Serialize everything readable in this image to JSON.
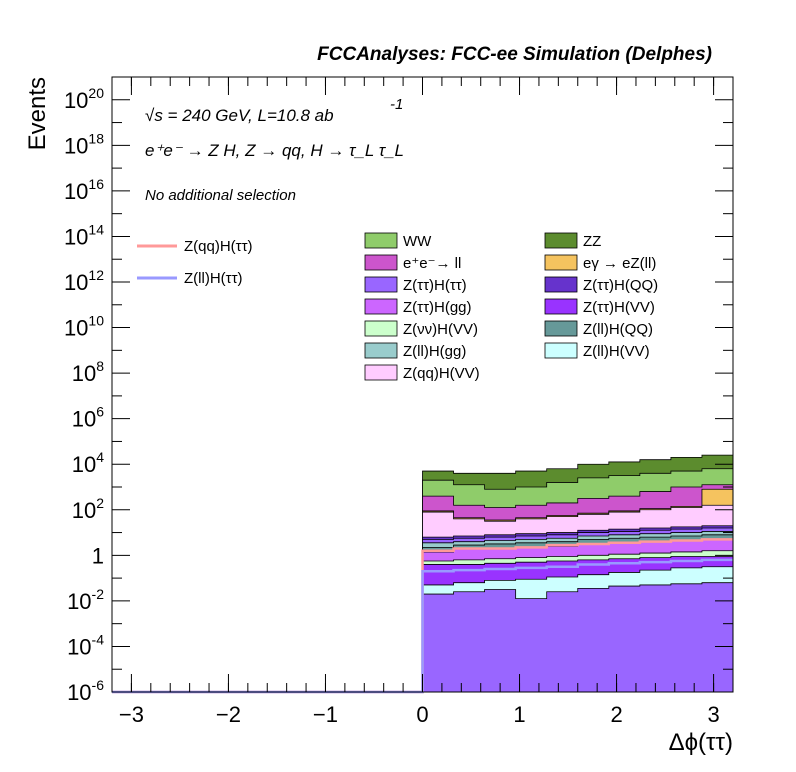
{
  "chart_data": {
    "type": "area",
    "stacked": true,
    "title": "FCCAnalyses: FCC-ee Simulation (Delphes)",
    "annotations": {
      "energy": "√s = 240 GeV, L=10.8 ab",
      "energy_exp": "-1",
      "process": "e⁺e⁻ → Z H, Z → qq, H → τ_L τ_L",
      "selection": "No additional selection"
    },
    "xlabel": "Δϕ(ττ)",
    "ylabel": "Events",
    "xlim": [
      -3.2,
      3.2
    ],
    "ylim": [
      1e-06,
      1e+21
    ],
    "ylog": true,
    "grid": false,
    "legend_position": "top-right",
    "x_ticks": [
      "−3",
      "−2",
      "−1",
      "0",
      "1",
      "2",
      "3"
    ],
    "y_ticks": [
      {
        "base": "10",
        "exp": "-6"
      },
      {
        "base": "10",
        "exp": "-4"
      },
      {
        "base": "10",
        "exp": "-2"
      },
      {
        "base": "1",
        "exp": ""
      },
      {
        "base": "10",
        "exp": "2"
      },
      {
        "base": "10",
        "exp": "4"
      },
      {
        "base": "10",
        "exp": "6"
      },
      {
        "base": "10",
        "exp": "8"
      },
      {
        "base": "10",
        "exp": "10"
      },
      {
        "base": "10",
        "exp": "12"
      },
      {
        "base": "10",
        "exp": "14"
      },
      {
        "base": "10",
        "exp": "16"
      },
      {
        "base": "10",
        "exp": "18"
      },
      {
        "base": "10",
        "exp": "20"
      }
    ],
    "bins": [
      0.0,
      0.32,
      0.64,
      0.96,
      1.28,
      1.6,
      1.92,
      2.24,
      2.56,
      2.88,
      3.2
    ],
    "stack_boundaries_log10": [
      {
        "name": "Z(ll)H(VV)",
        "values": [
          -1.3,
          -1.2,
          -1.1,
          -1.05,
          -0.95,
          -0.85,
          -0.75,
          -0.65,
          -0.55,
          -0.5
        ]
      },
      {
        "name": "Z(ττ)H(VV)",
        "values": [
          -0.4,
          -0.4,
          -0.35,
          -0.3,
          -0.25,
          -0.2,
          -0.15,
          -0.1,
          -0.05,
          -0.05
        ]
      },
      {
        "name": "Z(νν)H(VV)",
        "values": [
          -0.25,
          -0.2,
          -0.15,
          -0.1,
          -0.05,
          0.0,
          0.05,
          0.1,
          0.15,
          0.2
        ]
      },
      {
        "name": "Z(ττ)H(gg)",
        "values": [
          0.15,
          0.3,
          0.3,
          0.35,
          0.4,
          0.5,
          0.55,
          0.6,
          0.65,
          0.7
        ]
      },
      {
        "name": "Z(ll)H(QQ)",
        "values": [
          0.35,
          0.45,
          0.5,
          0.55,
          0.6,
          0.7,
          0.75,
          0.8,
          0.85,
          0.9
        ]
      },
      {
        "name": "Z(ll)H(gg)",
        "values": [
          0.55,
          0.6,
          0.65,
          0.7,
          0.75,
          0.85,
          0.9,
          0.95,
          1.0,
          1.05
        ]
      },
      {
        "name": "Z(ττ)H(ττ)",
        "values": [
          0.7,
          0.75,
          0.8,
          0.85,
          0.9,
          1.0,
          1.05,
          1.1,
          1.15,
          1.2
        ]
      },
      {
        "name": "Z(ττ)H(QQ)",
        "values": [
          0.8,
          0.85,
          0.9,
          0.95,
          1.0,
          1.1,
          1.15,
          1.2,
          1.25,
          1.3
        ]
      },
      {
        "name": "Z(qq)H(VV)",
        "values": [
          1.9,
          1.6,
          1.5,
          1.6,
          1.7,
          1.8,
          1.9,
          2.0,
          2.1,
          2.2
        ]
      },
      {
        "name": "eγ → eZ(ll)",
        "values": [
          1.95,
          1.65,
          1.55,
          1.65,
          1.75,
          1.85,
          1.95,
          2.05,
          2.15,
          2.9
        ]
      },
      {
        "name": "e⁺e⁻→ ll",
        "values": [
          2.6,
          2.2,
          2.1,
          2.2,
          2.3,
          2.5,
          2.6,
          2.8,
          3.0,
          3.1
        ]
      },
      {
        "name": "WW",
        "values": [
          3.3,
          3.1,
          2.9,
          3.0,
          3.2,
          3.4,
          3.5,
          3.6,
          3.7,
          3.8
        ]
      },
      {
        "name": "ZZ",
        "values": [
          3.7,
          3.6,
          3.6,
          3.7,
          3.8,
          4.0,
          4.1,
          4.2,
          4.3,
          4.4
        ]
      }
    ],
    "stack_colors": {
      "ZZ": "#5c8c2e",
      "WW": "#8fcc6a",
      "e⁺e⁻→ ll": "#cc55cc",
      "eγ → eZ(ll)": "#f5c35f",
      "Z(qq)H(VV)": "#ffccff",
      "Z(ττ)H(QQ)": "#6633cc",
      "Z(ττ)H(ττ)": "#9966ff",
      "Z(ll)H(gg)": "#99cccc",
      "Z(ll)H(QQ)": "#669999",
      "Z(νν)H(VV)": "#ccffcc",
      "Z(ττ)H(gg)": "#cc66ff",
      "Z(ττ)H(VV)": "#9933ff",
      "Z(ll)H(VV)": "#ccffff"
    },
    "base_fill": "#9966ff",
    "signals": [
      {
        "name": "Z(qq)H(ττ)",
        "color": "#ff9999",
        "values_log10": [
          0.2,
          0.3,
          0.3,
          0.35,
          0.45,
          0.5,
          0.55,
          0.6,
          0.65,
          0.7
        ]
      },
      {
        "name": "Z(ll)H(ττ)",
        "color": "#9999ff",
        "values_log10": [
          -0.7,
          -0.65,
          -0.6,
          -0.55,
          -0.5,
          -0.4,
          -0.35,
          -0.3,
          -0.25,
          -0.2
        ]
      }
    ],
    "legend_signals": [
      {
        "label": "Z(qq)H(ττ)",
        "color": "#ff9999"
      },
      {
        "label": "Z(ll)H(ττ)",
        "color": "#9999ff"
      }
    ],
    "legend_stack": [
      {
        "label": "WW",
        "color": "#8fcc6a"
      },
      {
        "label": "ZZ",
        "color": "#5c8c2e"
      },
      {
        "label": "e⁺e⁻→ ll",
        "color": "#cc55cc"
      },
      {
        "label": "eγ → eZ(ll)",
        "color": "#f5c35f"
      },
      {
        "label": "Z(ττ)H(ττ)",
        "color": "#9966ff"
      },
      {
        "label": "Z(ττ)H(QQ)",
        "color": "#6633cc"
      },
      {
        "label": "Z(ττ)H(gg)",
        "color": "#cc66ff"
      },
      {
        "label": "Z(ττ)H(VV)",
        "color": "#9933ff"
      },
      {
        "label": "Z(νν)H(VV)",
        "color": "#ccffcc"
      },
      {
        "label": "Z(ll)H(QQ)",
        "color": "#669999"
      },
      {
        "label": "Z(ll)H(gg)",
        "color": "#99cccc"
      },
      {
        "label": "Z(ll)H(VV)",
        "color": "#ccffff"
      },
      {
        "label": "Z(qq)H(VV)",
        "color": "#ffccff"
      }
    ]
  }
}
